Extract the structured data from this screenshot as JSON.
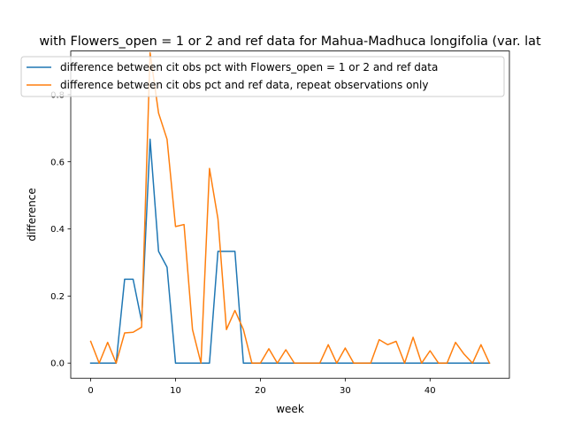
{
  "chart_data": {
    "type": "line",
    "title": "with Flowers_open = 1 or 2 and ref data for Mahua-Madhuca longifolia (var. lat",
    "xlabel": "week",
    "ylabel": "difference",
    "xlim": [
      -2.35,
      49.35
    ],
    "ylim": [
      -0.045,
      0.93
    ],
    "xticks": [
      0,
      10,
      20,
      30,
      40
    ],
    "yticks": [
      0.0,
      0.2,
      0.4,
      0.6,
      0.8
    ],
    "ytick_labels": [
      "0.0",
      "0.2",
      "0.4",
      "0.6",
      "0.8"
    ],
    "grid": false,
    "legend_position": "upper-center",
    "x": [
      0,
      1,
      2,
      3,
      4,
      5,
      6,
      7,
      8,
      9,
      10,
      11,
      12,
      13,
      14,
      15,
      16,
      17,
      18,
      19,
      20,
      21,
      22,
      23,
      24,
      25,
      26,
      27,
      28,
      29,
      30,
      31,
      32,
      33,
      34,
      35,
      36,
      37,
      38,
      39,
      40,
      41,
      42,
      43,
      44,
      45,
      46,
      47
    ],
    "series": [
      {
        "name": "difference between cit obs pct with Flowers_open = 1 or 2 and ref data",
        "color": "#1f77b4",
        "values": [
          0,
          0,
          0,
          0,
          0.25,
          0.25,
          0.125,
          0.667,
          0.333,
          0.286,
          0,
          0,
          0,
          0,
          0,
          0.333,
          0.333,
          0.333,
          0,
          0,
          0,
          0,
          0,
          0,
          0,
          0,
          0,
          0,
          0,
          0,
          0,
          0,
          0,
          0,
          0,
          0,
          0,
          0,
          0,
          0,
          0,
          0,
          0,
          0,
          0,
          0,
          0,
          0
        ]
      },
      {
        "name": "difference between cit obs pct and ref data, repeat observations only",
        "color": "#ff7f0e",
        "values": [
          0.065,
          0,
          0.062,
          0,
          0.09,
          0.092,
          0.107,
          0.925,
          0.745,
          0.667,
          0.407,
          0.413,
          0.1,
          0,
          0.58,
          0.43,
          0.1,
          0.157,
          0.1,
          0,
          0,
          0.043,
          0,
          0.04,
          0,
          0,
          0,
          0,
          0.055,
          0,
          0.045,
          0,
          0,
          0,
          0.07,
          0.055,
          0.065,
          0,
          0.077,
          0,
          0.037,
          0,
          0,
          0.062,
          0.027,
          0,
          0.055,
          0
        ]
      }
    ]
  }
}
